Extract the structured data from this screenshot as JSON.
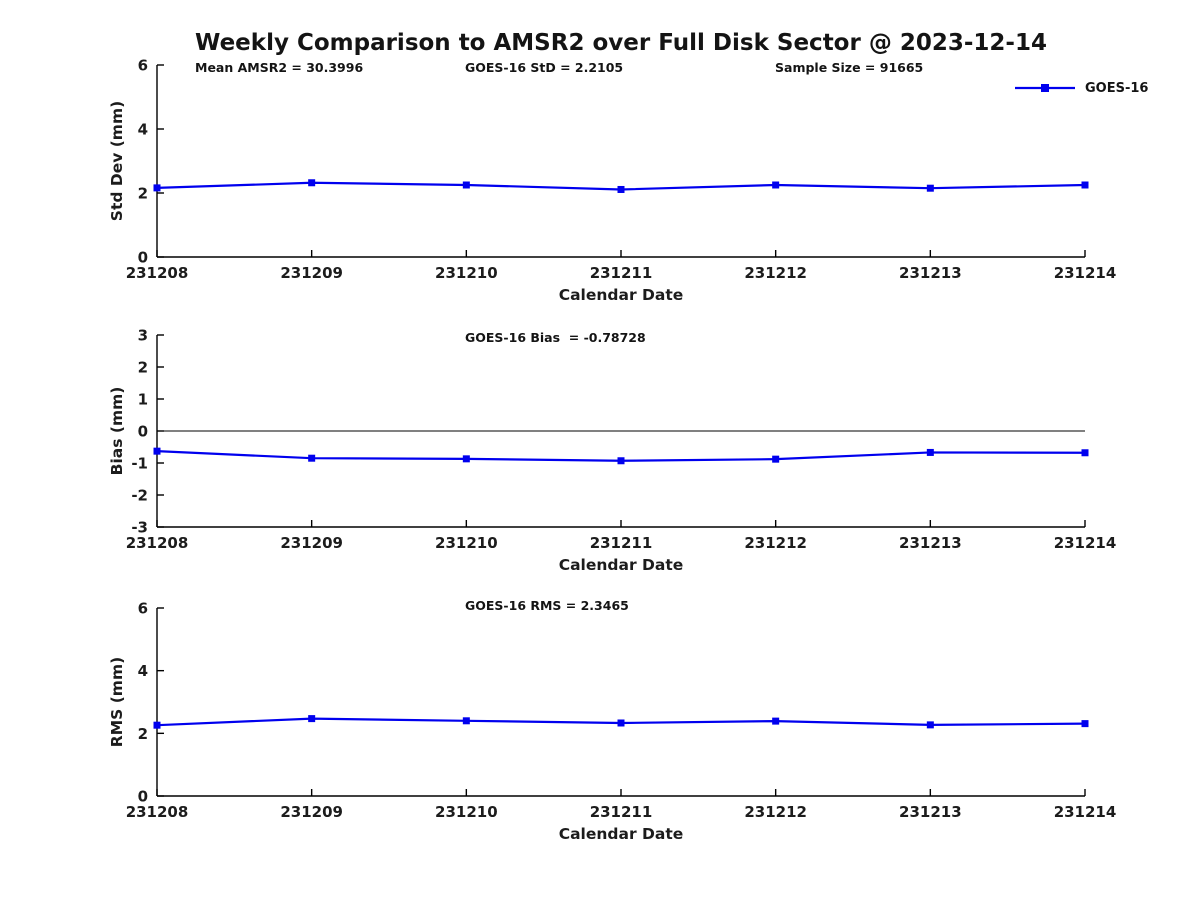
{
  "title": "Weekly Comparison to AMSR2 over Full Disk Sector @ 2023-12-14",
  "legend": {
    "label": "GOES-16"
  },
  "colors": {
    "line": "#0000ee",
    "axis": "#000000",
    "text": "#1c1c1c"
  },
  "chart_data": [
    {
      "type": "line",
      "title": "",
      "xlabel": "Calendar Date",
      "ylabel": "Std Dev (mm)",
      "x": [
        "231208",
        "231209",
        "231210",
        "231211",
        "231212",
        "231213",
        "231214"
      ],
      "series": [
        {
          "name": "GOES-16",
          "values": [
            2.16,
            2.32,
            2.25,
            2.11,
            2.25,
            2.15,
            2.25
          ]
        }
      ],
      "ylim": [
        0,
        6
      ],
      "yticks": [
        0,
        2,
        4,
        6
      ],
      "zero_line": false,
      "marker": "square",
      "grid": false,
      "legend_position": "top-right-outside",
      "annotations": [
        {
          "text": "Mean AMSR2 = 30.3996"
        },
        {
          "text": "GOES-16 StD = 2.2105"
        },
        {
          "text": "Sample Size = 91665"
        }
      ]
    },
    {
      "type": "line",
      "title": "",
      "xlabel": "Calendar Date",
      "ylabel": "Bias (mm)",
      "x": [
        "231208",
        "231209",
        "231210",
        "231211",
        "231212",
        "231213",
        "231214"
      ],
      "series": [
        {
          "name": "GOES-16",
          "values": [
            -0.63,
            -0.85,
            -0.87,
            -0.93,
            -0.88,
            -0.67,
            -0.68
          ]
        }
      ],
      "ylim": [
        -3,
        3
      ],
      "yticks": [
        -3,
        -2,
        -1,
        0,
        1,
        2,
        3
      ],
      "zero_line": true,
      "marker": "square",
      "grid": false,
      "legend_position": "none",
      "annotations": [
        {
          "text": "GOES-16 Bias  = -0.78728"
        }
      ]
    },
    {
      "type": "line",
      "title": "",
      "xlabel": "Calendar Date",
      "ylabel": "RMS (mm)",
      "x": [
        "231208",
        "231209",
        "231210",
        "231211",
        "231212",
        "231213",
        "231214"
      ],
      "series": [
        {
          "name": "GOES-16",
          "values": [
            2.26,
            2.47,
            2.4,
            2.33,
            2.39,
            2.27,
            2.31
          ]
        }
      ],
      "ylim": [
        0,
        6
      ],
      "yticks": [
        0,
        2,
        4,
        6
      ],
      "zero_line": false,
      "marker": "square",
      "grid": false,
      "legend_position": "none",
      "annotations": [
        {
          "text": "GOES-16 RMS = 2.3465"
        }
      ]
    }
  ]
}
